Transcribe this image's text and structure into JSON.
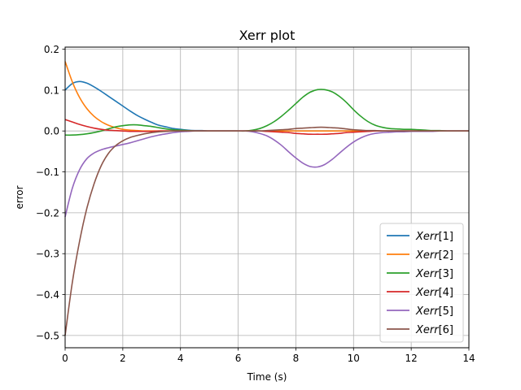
{
  "chart_data": {
    "type": "line",
    "title": "Xerr plot",
    "xlabel": "Time (s)",
    "ylabel": "error",
    "xlim": [
      0,
      14
    ],
    "ylim": [
      -0.53,
      0.205
    ],
    "xticks": [
      0,
      2,
      4,
      6,
      8,
      10,
      12,
      14
    ],
    "xtick_labels": [
      "0",
      "2",
      "4",
      "6",
      "8",
      "10",
      "12",
      "14"
    ],
    "yticks": [
      -0.5,
      -0.4,
      -0.3,
      -0.2,
      -0.1,
      0.0,
      0.1,
      0.2
    ],
    "ytick_labels": [
      "−0.5",
      "−0.4",
      "−0.3",
      "−0.2",
      "−0.1",
      "0.0",
      "0.1",
      "0.2"
    ],
    "grid": true,
    "legend_position": "lower-right",
    "x": [
      0,
      0.25,
      0.5,
      0.75,
      1,
      1.25,
      1.5,
      1.75,
      2,
      2.25,
      2.5,
      2.75,
      3,
      3.25,
      3.5,
      3.75,
      4,
      4.25,
      4.5,
      4.75,
      5,
      5.25,
      5.5,
      5.75,
      6,
      6.25,
      6.5,
      6.75,
      7,
      7.25,
      7.5,
      7.75,
      8,
      8.25,
      8.5,
      8.75,
      9,
      9.25,
      9.5,
      9.75,
      10,
      10.25,
      10.5,
      10.75,
      11,
      11.25,
      11.5,
      11.75,
      12,
      12.25,
      12.5,
      12.75,
      13,
      13.25,
      13.5,
      13.75,
      14
    ],
    "series": [
      {
        "name": "Xerr[1]",
        "name_parts": [
          "Xerr",
          "[1]"
        ],
        "color": "#1f77b4",
        "values": [
          0.1,
          0.116,
          0.121,
          0.117,
          0.108,
          0.097,
          0.085,
          0.073,
          0.061,
          0.049,
          0.038,
          0.029,
          0.021,
          0.014,
          0.01,
          0.006,
          0.004,
          0.002,
          0.001,
          0.001,
          0.0,
          0.0,
          0.0,
          0.0,
          0.0,
          0.0,
          0.0,
          0.0,
          0.0,
          0.0,
          0.0,
          0.0,
          0.0,
          0.0,
          0.0,
          0.0,
          0.0,
          0.0,
          0.0,
          0.0,
          0.0,
          0.0,
          0.0,
          0.0,
          0.0,
          0.0,
          0.0,
          0.0,
          0.0,
          0.0,
          0.0,
          0.0,
          0.0,
          0.0,
          0.0,
          0.0,
          0.0
        ]
      },
      {
        "name": "Xerr[2]",
        "name_parts": [
          "Xerr",
          "[2]"
        ],
        "color": "#ff7f0e",
        "values": [
          0.17,
          0.12,
          0.082,
          0.055,
          0.036,
          0.023,
          0.014,
          0.008,
          0.004,
          0.002,
          0.001,
          0.0,
          0.0,
          0.0,
          0.0,
          0.0,
          0.0,
          0.0,
          0.0,
          0.0,
          0.0,
          0.0,
          0.0,
          0.0,
          0.0,
          0.0,
          0.0,
          0.0,
          0.0,
          0.0,
          0.0,
          0.0,
          0.0,
          0.0,
          0.0,
          0.0,
          0.0,
          0.0,
          0.0,
          0.0,
          0.0,
          0.0,
          0.0,
          0.0,
          0.0,
          0.0,
          0.0,
          0.0,
          0.0,
          0.0,
          0.0,
          0.0,
          0.0,
          0.0,
          0.0,
          0.0,
          0.0
        ]
      },
      {
        "name": "Xerr[3]",
        "name_parts": [
          "Xerr",
          "[3]"
        ],
        "color": "#2ca02c",
        "values": [
          -0.01,
          -0.01,
          -0.009,
          -0.007,
          -0.004,
          0.0,
          0.005,
          0.01,
          0.013,
          0.015,
          0.015,
          0.013,
          0.011,
          0.008,
          0.005,
          0.003,
          0.002,
          0.001,
          0.0,
          0.0,
          0.0,
          0.0,
          0.0,
          0.0,
          0.0,
          0.0,
          0.002,
          0.006,
          0.013,
          0.023,
          0.036,
          0.051,
          0.067,
          0.083,
          0.095,
          0.101,
          0.101,
          0.096,
          0.085,
          0.07,
          0.052,
          0.036,
          0.023,
          0.014,
          0.009,
          0.006,
          0.005,
          0.004,
          0.004,
          0.003,
          0.002,
          0.001,
          0.001,
          0.0,
          0.0,
          0.0,
          0.0
        ]
      },
      {
        "name": "Xerr[4]",
        "name_parts": [
          "Xerr",
          "[4]"
        ],
        "color": "#d62728",
        "values": [
          0.028,
          0.022,
          0.016,
          0.011,
          0.007,
          0.004,
          0.002,
          0.001,
          0.0,
          -0.001,
          -0.001,
          -0.001,
          -0.001,
          0.0,
          0.0,
          0.0,
          0.0,
          0.0,
          0.0,
          0.0,
          0.0,
          0.0,
          0.0,
          0.0,
          0.0,
          0.0,
          0.0,
          0.0,
          -0.001,
          -0.002,
          -0.003,
          -0.004,
          -0.006,
          -0.007,
          -0.008,
          -0.008,
          -0.008,
          -0.007,
          -0.006,
          -0.004,
          -0.003,
          -0.002,
          -0.001,
          0.0,
          0.0,
          0.0,
          0.0,
          0.0,
          0.0,
          0.0,
          0.0,
          0.0,
          0.0,
          0.0,
          0.0,
          0.0,
          0.0
        ]
      },
      {
        "name": "Xerr[5]",
        "name_parts": [
          "Xerr",
          "[5]"
        ],
        "color": "#9467bd",
        "values": [
          -0.21,
          -0.14,
          -0.095,
          -0.068,
          -0.054,
          -0.046,
          -0.041,
          -0.037,
          -0.033,
          -0.029,
          -0.024,
          -0.019,
          -0.014,
          -0.01,
          -0.007,
          -0.004,
          -0.002,
          -0.001,
          0.0,
          0.0,
          0.0,
          0.0,
          0.0,
          0.0,
          0.0,
          0.0,
          -0.002,
          -0.006,
          -0.012,
          -0.022,
          -0.035,
          -0.051,
          -0.066,
          -0.079,
          -0.087,
          -0.088,
          -0.082,
          -0.07,
          -0.055,
          -0.04,
          -0.027,
          -0.017,
          -0.01,
          -0.006,
          -0.004,
          -0.003,
          -0.002,
          -0.002,
          -0.001,
          -0.001,
          -0.001,
          -0.001,
          0.0,
          0.0,
          0.0,
          0.0,
          0.0
        ]
      },
      {
        "name": "Xerr[6]",
        "name_parts": [
          "Xerr",
          "[6]"
        ],
        "color": "#8c564b",
        "values": [
          -0.5,
          -0.37,
          -0.27,
          -0.19,
          -0.13,
          -0.085,
          -0.055,
          -0.036,
          -0.024,
          -0.016,
          -0.011,
          -0.007,
          -0.004,
          -0.002,
          -0.001,
          0.0,
          0.0,
          0.0,
          0.0,
          0.0,
          0.0,
          0.0,
          0.0,
          0.0,
          0.0,
          0.0,
          0.0,
          0.0,
          0.001,
          0.002,
          0.003,
          0.004,
          0.006,
          0.007,
          0.008,
          0.009,
          0.009,
          0.008,
          0.007,
          0.005,
          0.003,
          0.002,
          0.001,
          0.001,
          0.0,
          0.0,
          0.0,
          0.0,
          0.0,
          0.0,
          0.0,
          0.0,
          0.0,
          0.0,
          0.0,
          0.0,
          0.0
        ]
      }
    ]
  }
}
